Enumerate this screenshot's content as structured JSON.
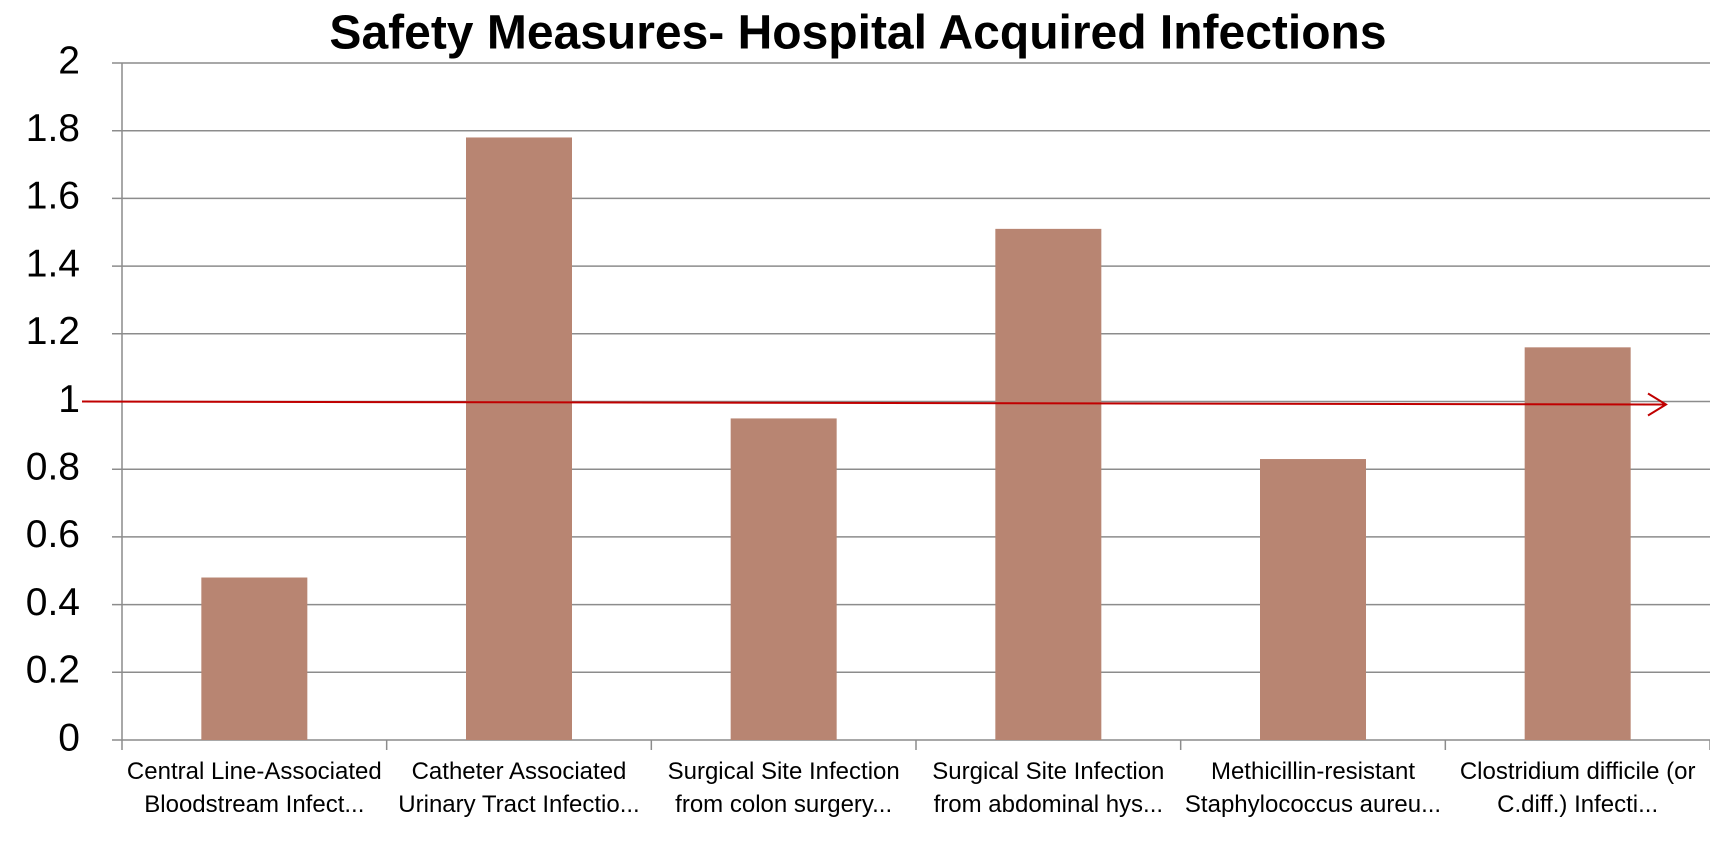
{
  "chart_data": {
    "type": "bar",
    "title": "Safety Measures- Hospital Acquired Infections",
    "categories": [
      "Central Line-Associated Bloodstream Infect...",
      "Catheter Associated Urinary Tract Infectio...",
      "Surgical Site Infection from colon surgery...",
      "Surgical Site Infection from abdominal hys...",
      "Methicillin-resistant Staphylococcus aureu...",
      "Clostridium difficile (or C.diff.) Infecti..."
    ],
    "values": [
      0.48,
      1.78,
      0.95,
      1.51,
      0.83,
      1.16
    ],
    "color": "#b88572",
    "ylim": [
      0,
      2
    ],
    "yticks": [
      0,
      0.2,
      0.4,
      0.6,
      0.8,
      1,
      1.2,
      1.4,
      1.6,
      1.8,
      2
    ],
    "grid": true,
    "reference_line": {
      "value": 1,
      "color": "#c00000"
    }
  }
}
